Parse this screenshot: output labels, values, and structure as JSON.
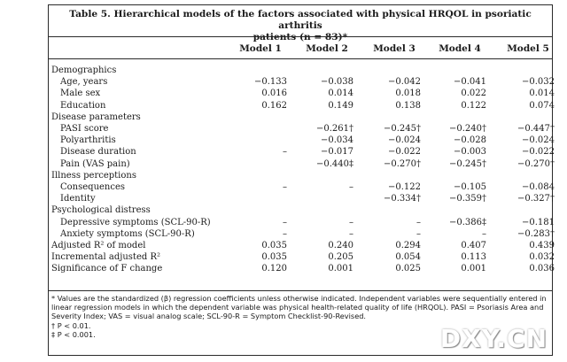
{
  "table": {
    "title_line1": "Table 5.  Hierarchical models of the factors associated with physical HRQOL in psoriatic arthritis",
    "title_line2": "patients (n = 83)*",
    "columns": [
      "Model 1",
      "Model 2",
      "Model 3",
      "Model 4",
      "Model 5"
    ],
    "rows": [
      {
        "label": "Demographics",
        "level": 0,
        "values": [
          "",
          "",
          "",
          "",
          ""
        ]
      },
      {
        "label": "Age, years",
        "level": 1,
        "values": [
          "−0.133",
          "−0.038",
          "−0.042",
          "−0.041",
          "−0.032"
        ]
      },
      {
        "label": "Male sex",
        "level": 1,
        "values": [
          "0.016",
          "0.014",
          "0.018",
          "0.022",
          "0.014"
        ]
      },
      {
        "label": "Education",
        "level": 1,
        "values": [
          "0.162",
          "0.149",
          "0.138",
          "0.122",
          "0.074"
        ]
      },
      {
        "label": "Disease parameters",
        "level": 0,
        "values": [
          "",
          "",
          "",
          "",
          ""
        ]
      },
      {
        "label": "PASI score",
        "level": 1,
        "values": [
          "",
          "−0.261†",
          "−0.245†",
          "−0.240†",
          "−0.447†"
        ]
      },
      {
        "label": "Polyarthritis",
        "level": 1,
        "values": [
          "",
          "−0.034",
          "−0.024",
          "−0.028",
          "−0.024"
        ]
      },
      {
        "label": "Disease duration",
        "level": 1,
        "values": [
          "–",
          "−0.017",
          "−0.022",
          "−0.003",
          "−0.022"
        ]
      },
      {
        "label": "Pain (VAS pain)",
        "level": 1,
        "values": [
          "",
          "−0.440‡",
          "−0.270†",
          "−0.245†",
          "−0.270†"
        ]
      },
      {
        "label": "Illness perceptions",
        "level": 0,
        "values": [
          "",
          "",
          "",
          "",
          ""
        ]
      },
      {
        "label": "Consequences",
        "level": 1,
        "values": [
          "–",
          "–",
          "−0.122",
          "−0.105",
          "−0.084"
        ]
      },
      {
        "label": "Identity",
        "level": 1,
        "values": [
          "",
          "",
          "−0.334†",
          "−0.359†",
          "−0.327†"
        ]
      },
      {
        "label": "Psychological distress",
        "level": 0,
        "values": [
          "",
          "",
          "",
          "",
          ""
        ]
      },
      {
        "label": "Depressive symptoms (SCL-90-R)",
        "level": 1,
        "values": [
          "–",
          "–",
          "–",
          "−0.386‡",
          "−0.181"
        ]
      },
      {
        "label": "Anxiety symptoms (SCL-90-R)",
        "level": 1,
        "values": [
          "–",
          "–",
          "–",
          "–",
          "−0.283†"
        ]
      },
      {
        "label": "Adjusted R² of model",
        "level": 0,
        "values": [
          "0.035",
          "0.240",
          "0.294",
          "0.407",
          "0.439"
        ]
      },
      {
        "label": "Incremental adjusted R²",
        "level": 0,
        "values": [
          "0.035",
          "0.205",
          "0.054",
          "0.113",
          "0.032"
        ]
      },
      {
        "label": "Significance of F change",
        "level": 0,
        "values": [
          "0.120",
          "0.001",
          "0.025",
          "0.001",
          "0.036"
        ]
      }
    ],
    "footnotes": [
      "* Values are the standardized (β) regression coefficients unless otherwise indicated. Independent variables were sequentially entered in linear regression models in which the dependent variable was physical health-related quality of life (HRQOL). PASI = Psoriasis Area and Severity Index; VAS = visual analog scale; SCL-90-R = Symptom Checklist-90-Revised.",
      "† P < 0.01.",
      "‡ P < 0.001."
    ]
  },
  "watermark": "DXY.CN"
}
